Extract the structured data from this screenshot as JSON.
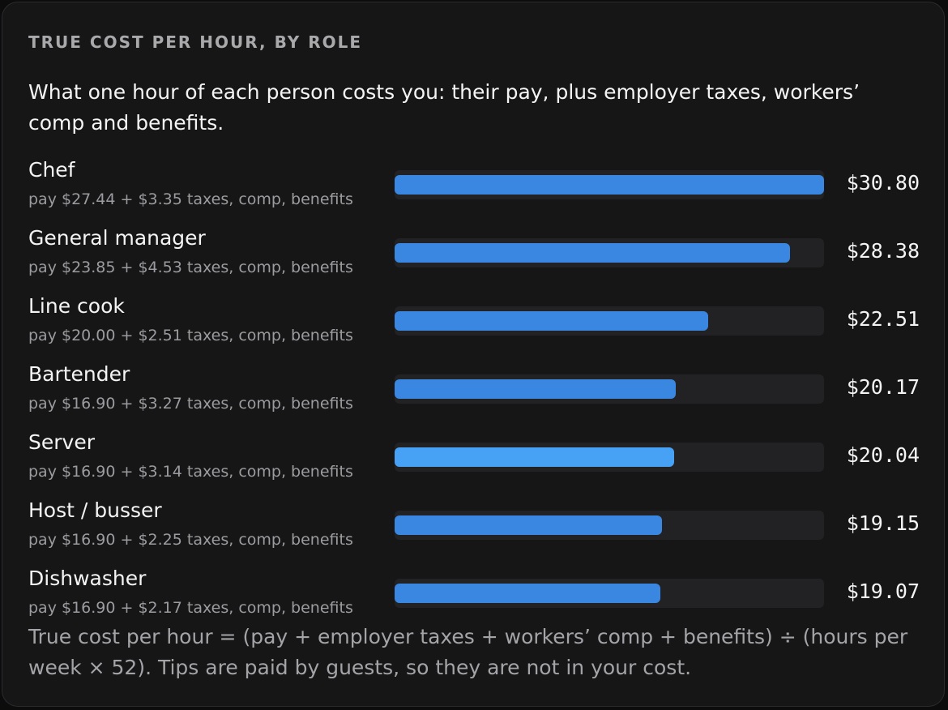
{
  "heading": "TRUE COST PER HOUR, BY ROLE",
  "subtitle": "What one hour of each person costs you: their pay, plus employer taxes, workers’ comp and benefits.",
  "footnote": "True cost per hour = (pay + employer taxes + workers’ comp + benefits) ÷ (hours per week × 52). Tips are paid by guests, so they are not in your cost.",
  "colors": {
    "bar": "#3a87e2",
    "bar_highlight": "#47a2f5",
    "track": "#222224",
    "background": "#161617"
  },
  "chart_data": {
    "type": "bar",
    "orientation": "horizontal",
    "title": "TRUE COST PER HOUR, BY ROLE",
    "xlim": [
      0,
      30.8
    ],
    "highlighted_category": "Server",
    "categories": [
      "Chef",
      "General manager",
      "Line cook",
      "Bartender",
      "Server",
      "Host / busser",
      "Dishwasher"
    ],
    "values": [
      30.8,
      28.38,
      22.51,
      20.17,
      20.04,
      19.15,
      19.07
    ],
    "rows": [
      {
        "role": "Chef",
        "breakdown": "pay $27.44 + $3.35 taxes, comp, benefits",
        "amount": "$30.80",
        "value": 30.8
      },
      {
        "role": "General manager",
        "breakdown": "pay $23.85 + $4.53 taxes, comp, benefits",
        "amount": "$28.38",
        "value": 28.38
      },
      {
        "role": "Line cook",
        "breakdown": "pay $20.00 + $2.51 taxes, comp, benefits",
        "amount": "$22.51",
        "value": 22.51
      },
      {
        "role": "Bartender",
        "breakdown": "pay $16.90 + $3.27 taxes, comp, benefits",
        "amount": "$20.17",
        "value": 20.17
      },
      {
        "role": "Server",
        "breakdown": "pay $16.90 + $3.14 taxes, comp, benefits",
        "amount": "$20.04",
        "value": 20.04
      },
      {
        "role": "Host / busser",
        "breakdown": "pay $16.90 + $2.25 taxes, comp, benefits",
        "amount": "$19.15",
        "value": 19.15
      },
      {
        "role": "Dishwasher",
        "breakdown": "pay $16.90 + $2.17 taxes, comp, benefits",
        "amount": "$19.07",
        "value": 19.07
      }
    ]
  }
}
